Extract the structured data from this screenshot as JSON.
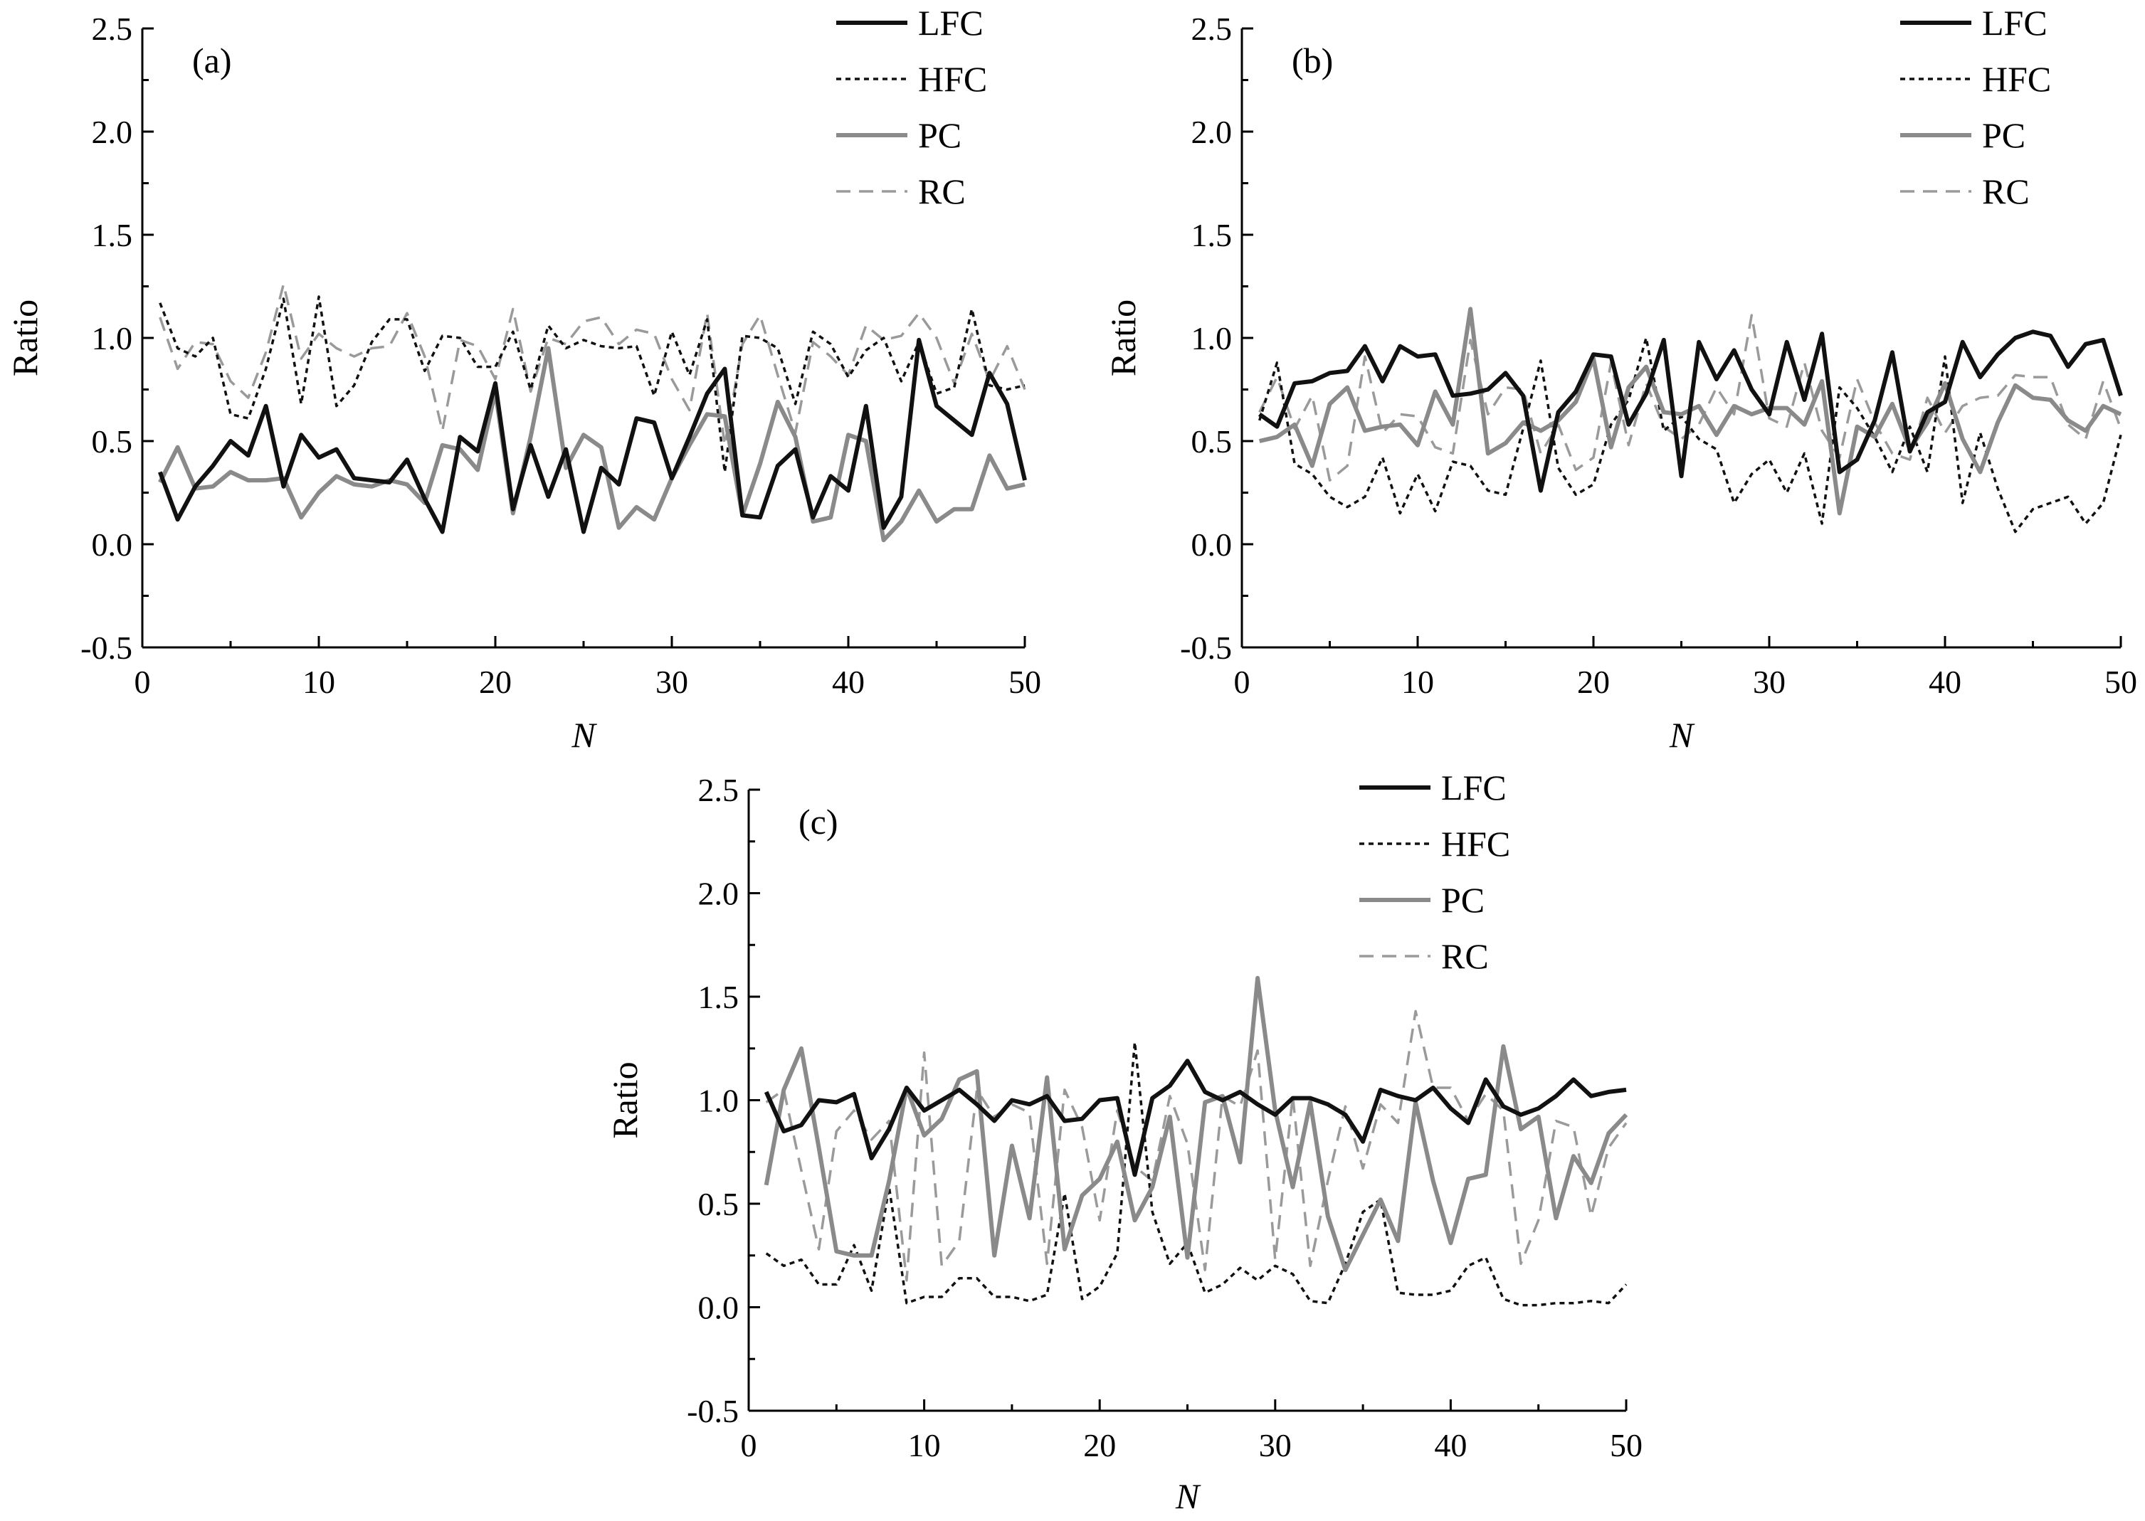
{
  "chart_data": [
    {
      "type": "line",
      "panel_label": "(a)",
      "xlabel": "N",
      "ylabel": "Ratio",
      "xlim": [
        0,
        50
      ],
      "ylim": [
        -0.5,
        2.5
      ],
      "xticks": [
        0,
        10,
        20,
        30,
        40,
        50
      ],
      "yticks": [
        "-0.5",
        "0.0",
        "0.5",
        "1.0",
        "1.5",
        "2.0",
        "2.5"
      ],
      "grid": false,
      "legend_position": "top-right",
      "x": [
        1,
        2,
        3,
        4,
        5,
        6,
        7,
        8,
        9,
        10,
        11,
        12,
        13,
        14,
        15,
        16,
        17,
        18,
        19,
        20,
        21,
        22,
        23,
        24,
        25,
        26,
        27,
        28,
        29,
        30,
        31,
        32,
        33,
        34,
        35,
        36,
        37,
        38,
        39,
        40,
        41,
        42,
        43,
        44,
        45,
        46,
        47,
        48,
        49,
        50
      ],
      "series": [
        {
          "name": "LFC",
          "style": "solid-black",
          "values": [
            0.35,
            0.12,
            0.28,
            0.38,
            0.5,
            0.43,
            0.67,
            0.28,
            0.53,
            0.42,
            0.46,
            0.32,
            0.31,
            0.3,
            0.41,
            0.22,
            0.06,
            0.52,
            0.45,
            0.78,
            0.17,
            0.48,
            0.23,
            0.46,
            0.06,
            0.37,
            0.29,
            0.61,
            0.59,
            0.32,
            0.52,
            0.73,
            0.85,
            0.14,
            0.13,
            0.38,
            0.46,
            0.13,
            0.33,
            0.26,
            0.67,
            0.08,
            0.23,
            0.99,
            0.67,
            0.6,
            0.53,
            0.83,
            0.68,
            0.31
          ]
        },
        {
          "name": "HFC",
          "style": "dotted-black",
          "values": [
            1.17,
            0.95,
            0.91,
            1.0,
            0.63,
            0.61,
            0.85,
            1.19,
            0.68,
            1.2,
            0.67,
            0.77,
            0.98,
            1.09,
            1.09,
            0.84,
            1.01,
            1.0,
            0.86,
            0.86,
            1.03,
            0.75,
            1.06,
            0.95,
            0.99,
            0.96,
            0.95,
            0.96,
            0.72,
            1.03,
            0.82,
            1.09,
            0.35,
            1.01,
            1.0,
            0.95,
            0.68,
            1.03,
            0.97,
            0.81,
            0.94,
            1.0,
            0.79,
            0.98,
            0.73,
            0.76,
            1.14,
            0.77,
            0.75,
            0.77
          ]
        },
        {
          "name": "PC",
          "style": "solid-gray",
          "values": [
            0.3,
            0.47,
            0.27,
            0.28,
            0.35,
            0.31,
            0.31,
            0.32,
            0.13,
            0.25,
            0.33,
            0.29,
            0.28,
            0.31,
            0.29,
            0.2,
            0.48,
            0.46,
            0.36,
            0.74,
            0.15,
            0.52,
            0.95,
            0.37,
            0.53,
            0.47,
            0.08,
            0.18,
            0.12,
            0.32,
            0.48,
            0.63,
            0.62,
            0.14,
            0.39,
            0.69,
            0.52,
            0.11,
            0.13,
            0.53,
            0.5,
            0.02,
            0.11,
            0.26,
            0.11,
            0.17,
            0.17,
            0.43,
            0.27,
            0.29
          ]
        },
        {
          "name": "RC",
          "style": "dashed-gray",
          "values": [
            1.1,
            0.85,
            0.98,
            0.97,
            0.79,
            0.71,
            0.93,
            1.26,
            0.9,
            1.02,
            0.95,
            0.91,
            0.95,
            0.96,
            1.12,
            0.91,
            0.55,
            0.99,
            0.96,
            0.8,
            1.14,
            0.74,
            1.0,
            0.97,
            1.08,
            1.1,
            0.97,
            1.04,
            1.02,
            0.8,
            0.65,
            1.12,
            0.48,
            0.97,
            1.11,
            0.82,
            0.54,
            0.98,
            0.91,
            0.82,
            1.06,
            0.99,
            1.01,
            1.12,
            1.0,
            0.78,
            1.02,
            0.79,
            0.96,
            0.75
          ]
        }
      ]
    },
    {
      "type": "line",
      "panel_label": "(b)",
      "xlabel": "N",
      "ylabel": "Ratio",
      "xlim": [
        0,
        50
      ],
      "ylim": [
        -0.5,
        2.5
      ],
      "xticks": [
        0,
        10,
        20,
        30,
        40,
        50
      ],
      "yticks": [
        "-0.5",
        "0.0",
        "0.5",
        "1.0",
        "1.5",
        "2.0",
        "2.5"
      ],
      "grid": false,
      "legend_position": "top-right",
      "x": [
        1,
        2,
        3,
        4,
        5,
        6,
        7,
        8,
        9,
        10,
        11,
        12,
        13,
        14,
        15,
        16,
        17,
        18,
        19,
        20,
        21,
        22,
        23,
        24,
        25,
        26,
        27,
        28,
        29,
        30,
        31,
        32,
        33,
        34,
        35,
        36,
        37,
        38,
        39,
        40,
        41,
        42,
        43,
        44,
        45,
        46,
        47,
        48,
        49,
        50
      ],
      "series": [
        {
          "name": "LFC",
          "style": "solid-black",
          "values": [
            0.63,
            0.57,
            0.78,
            0.79,
            0.83,
            0.84,
            0.96,
            0.79,
            0.96,
            0.91,
            0.92,
            0.72,
            0.73,
            0.75,
            0.83,
            0.72,
            0.26,
            0.64,
            0.74,
            0.92,
            0.91,
            0.58,
            0.73,
            0.99,
            0.33,
            0.98,
            0.8,
            0.94,
            0.75,
            0.63,
            0.98,
            0.7,
            1.02,
            0.35,
            0.41,
            0.6,
            0.93,
            0.45,
            0.64,
            0.69,
            0.98,
            0.81,
            0.92,
            1.0,
            1.03,
            1.01,
            0.86,
            0.97,
            0.99,
            0.72
          ]
        },
        {
          "name": "HFC",
          "style": "dotted-black",
          "values": [
            0.6,
            0.88,
            0.39,
            0.34,
            0.23,
            0.18,
            0.23,
            0.42,
            0.15,
            0.34,
            0.16,
            0.4,
            0.38,
            0.26,
            0.24,
            0.56,
            0.89,
            0.37,
            0.24,
            0.29,
            0.58,
            0.7,
            1.0,
            0.55,
            0.62,
            0.51,
            0.46,
            0.2,
            0.34,
            0.41,
            0.25,
            0.44,
            0.1,
            0.76,
            0.66,
            0.52,
            0.35,
            0.57,
            0.35,
            0.91,
            0.2,
            0.54,
            0.27,
            0.06,
            0.17,
            0.2,
            0.23,
            0.1,
            0.2,
            0.53
          ]
        },
        {
          "name": "PC",
          "style": "solid-gray",
          "values": [
            0.5,
            0.52,
            0.58,
            0.38,
            0.68,
            0.76,
            0.55,
            0.57,
            0.58,
            0.48,
            0.74,
            0.58,
            1.14,
            0.44,
            0.49,
            0.59,
            0.55,
            0.6,
            0.69,
            0.9,
            0.47,
            0.76,
            0.86,
            0.64,
            0.63,
            0.67,
            0.53,
            0.67,
            0.63,
            0.66,
            0.66,
            0.58,
            0.79,
            0.15,
            0.57,
            0.52,
            0.68,
            0.46,
            0.59,
            0.78,
            0.51,
            0.35,
            0.59,
            0.77,
            0.71,
            0.7,
            0.6,
            0.55,
            0.67,
            0.63
          ]
        },
        {
          "name": "RC",
          "style": "dashed-gray",
          "values": [
            0.64,
            0.81,
            0.56,
            0.72,
            0.31,
            0.38,
            0.91,
            0.54,
            0.63,
            0.62,
            0.47,
            0.44,
            0.99,
            0.63,
            0.76,
            0.75,
            0.44,
            0.58,
            0.36,
            0.42,
            0.88,
            0.48,
            0.78,
            0.57,
            0.51,
            0.58,
            0.76,
            0.63,
            1.11,
            0.61,
            0.57,
            0.88,
            0.55,
            0.42,
            0.8,
            0.59,
            0.44,
            0.41,
            0.71,
            0.54,
            0.67,
            0.71,
            0.72,
            0.82,
            0.81,
            0.81,
            0.58,
            0.51,
            0.79,
            0.56
          ]
        }
      ]
    },
    {
      "type": "line",
      "panel_label": "(c)",
      "xlabel": "N",
      "ylabel": "Ratio",
      "xlim": [
        0,
        50
      ],
      "ylim": [
        -0.5,
        2.5
      ],
      "xticks": [
        0,
        10,
        20,
        30,
        40,
        50
      ],
      "yticks": [
        "-0.5",
        "0.0",
        "0.5",
        "1.0",
        "1.5",
        "2.0",
        "2.5"
      ],
      "grid": false,
      "legend_position": "top-right",
      "x": [
        1,
        2,
        3,
        4,
        5,
        6,
        7,
        8,
        9,
        10,
        11,
        12,
        13,
        14,
        15,
        16,
        17,
        18,
        19,
        20,
        21,
        22,
        23,
        24,
        25,
        26,
        27,
        28,
        29,
        30,
        31,
        32,
        33,
        34,
        35,
        36,
        37,
        38,
        39,
        40,
        41,
        42,
        43,
        44,
        45,
        46,
        47,
        48,
        49,
        50
      ],
      "series": [
        {
          "name": "LFC",
          "style": "solid-black",
          "values": [
            1.04,
            0.85,
            0.88,
            1.0,
            0.99,
            1.03,
            0.72,
            0.86,
            1.06,
            0.95,
            1.0,
            1.05,
            0.98,
            0.9,
            1.0,
            0.98,
            1.02,
            0.9,
            0.91,
            1.0,
            1.01,
            0.64,
            1.01,
            1.07,
            1.19,
            1.04,
            1.0,
            1.04,
            0.98,
            0.93,
            1.01,
            1.01,
            0.98,
            0.93,
            0.8,
            1.05,
            1.02,
            1.0,
            1.06,
            0.96,
            0.89,
            1.1,
            0.97,
            0.93,
            0.96,
            1.02,
            1.1,
            1.02,
            1.04,
            1.05
          ]
        },
        {
          "name": "HFC",
          "style": "dotted-black",
          "values": [
            0.26,
            0.2,
            0.23,
            0.11,
            0.11,
            0.3,
            0.08,
            0.58,
            0.02,
            0.05,
            0.05,
            0.14,
            0.14,
            0.05,
            0.05,
            0.03,
            0.06,
            0.55,
            0.04,
            0.1,
            0.26,
            1.28,
            0.46,
            0.21,
            0.31,
            0.07,
            0.11,
            0.19,
            0.13,
            0.2,
            0.16,
            0.03,
            0.02,
            0.21,
            0.46,
            0.52,
            0.07,
            0.06,
            0.06,
            0.08,
            0.2,
            0.24,
            0.04,
            0.01,
            0.01,
            0.02,
            0.02,
            0.03,
            0.02,
            0.11
          ]
        },
        {
          "name": "PC",
          "style": "solid-gray",
          "values": [
            0.59,
            1.05,
            1.25,
            0.77,
            0.27,
            0.25,
            0.25,
            0.61,
            1.06,
            0.83,
            0.91,
            1.1,
            1.14,
            0.25,
            0.78,
            0.43,
            1.11,
            0.28,
            0.54,
            0.62,
            0.8,
            0.42,
            0.58,
            0.92,
            0.24,
            0.99,
            1.02,
            0.7,
            1.59,
            0.95,
            0.58,
            0.99,
            0.44,
            0.18,
            0.35,
            0.52,
            0.32,
            0.99,
            0.61,
            0.31,
            0.62,
            0.64,
            1.26,
            0.86,
            0.92,
            0.43,
            0.73,
            0.6,
            0.84,
            0.93
          ]
        },
        {
          "name": "RC",
          "style": "dashed-gray",
          "values": [
            0.99,
            1.05,
            0.66,
            0.28,
            0.85,
            0.95,
            0.81,
            0.9,
            0.13,
            1.23,
            0.2,
            0.32,
            1.05,
            0.92,
            0.98,
            0.94,
            0.21,
            1.05,
            0.87,
            0.42,
            0.95,
            0.68,
            0.61,
            1.02,
            0.79,
            0.18,
            1.02,
            0.97,
            1.24,
            0.23,
            1.02,
            0.2,
            0.61,
            0.97,
            0.67,
            0.98,
            0.89,
            1.43,
            1.06,
            1.06,
            0.9,
            1.03,
            0.95,
            0.21,
            0.42,
            0.9,
            0.87,
            0.44,
            0.77,
            0.89
          ]
        }
      ]
    }
  ],
  "series_styles": {
    "solid-black": {
      "color": "#111111",
      "width": 6,
      "dash": ""
    },
    "dotted-black": {
      "color": "#111111",
      "width": 3.5,
      "dash": "7,6"
    },
    "solid-gray": {
      "color": "#8a8a8a",
      "width": 6,
      "dash": ""
    },
    "dashed-gray": {
      "color": "#9a9a9a",
      "width": 3.5,
      "dash": "20,12"
    }
  }
}
